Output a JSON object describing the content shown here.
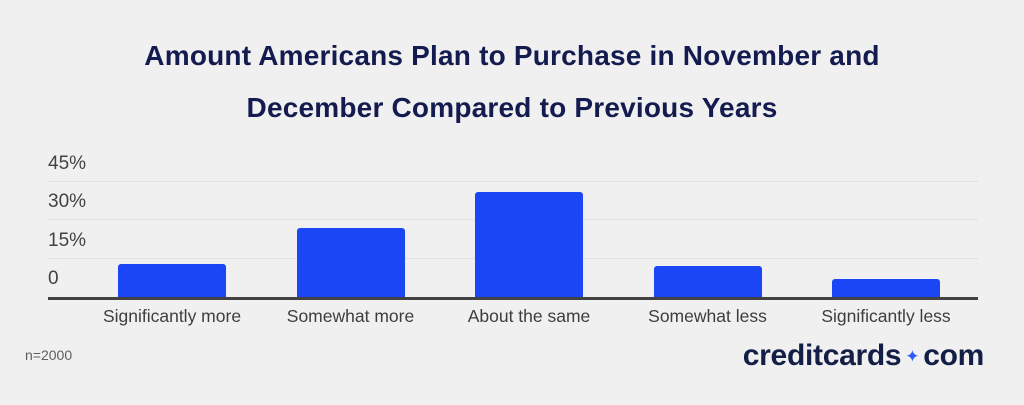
{
  "title_lines": [
    "Amount Americans Plan to Purchase in November and",
    "December Compared to Previous Years"
  ],
  "chart_data": {
    "type": "bar",
    "title": "Amount Americans Plan to Purchase in November and December Compared to Previous Years",
    "categories": [
      "Significantly more",
      "Somewhat more",
      "About the same",
      "Somewhat less",
      "Significantly less"
    ],
    "values": [
      13,
      27,
      41,
      12,
      7
    ],
    "xlabel": "",
    "ylabel": "",
    "ylim": [
      0,
      45
    ],
    "yticks": [
      0,
      15,
      30,
      45
    ],
    "ytick_labels": [
      "0",
      "15%",
      "30%",
      "45%"
    ],
    "grid": "horizontal",
    "legend": "none",
    "bar_color": "#1a46f5"
  },
  "footer": {
    "sample_size": "n=2000",
    "logo": {
      "part1": "creditcards",
      "separator": "✦",
      "part2": "com"
    }
  },
  "colors": {
    "background": "#f0f0f1",
    "title": "#141b4f",
    "bar": "#1a46f5",
    "gridline": "#e1e1e1",
    "axis": "#424242",
    "tick_text": "#424242",
    "category_text": "#3d3d3d",
    "logo_navy": "#131f47",
    "logo_spark_blue": "#2e5bf7"
  }
}
